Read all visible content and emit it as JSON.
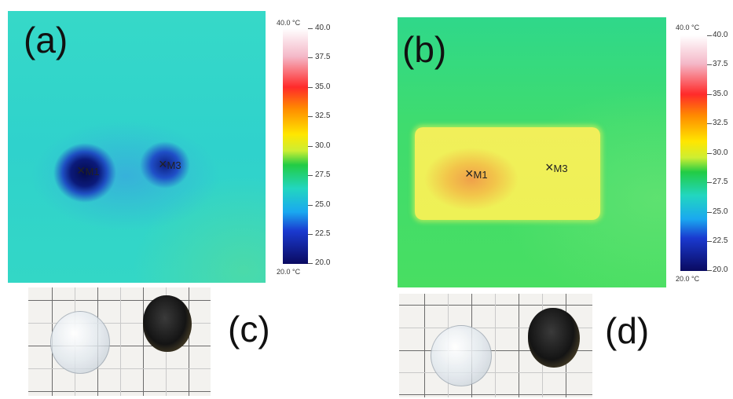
{
  "panels": {
    "a": {
      "label": "(a)",
      "markers": [
        "M1",
        "M3"
      ]
    },
    "b": {
      "label": "(b)",
      "markers": [
        "M1",
        "M3"
      ]
    },
    "c": {
      "label": "(c)"
    },
    "d": {
      "label": "(d)"
    }
  },
  "colorbar": {
    "top_label": "40.0 °C",
    "bottom_label": "20.0 °C",
    "ticks": [
      "40.0",
      "37.5",
      "35.0",
      "32.5",
      "30.0",
      "27.5",
      "25.0",
      "22.5",
      "20.0"
    ]
  },
  "colors": {
    "background_cyan": "#2fd8c9",
    "cold_spot": "#0a1a6e",
    "warm_region": "#e8f24a"
  }
}
